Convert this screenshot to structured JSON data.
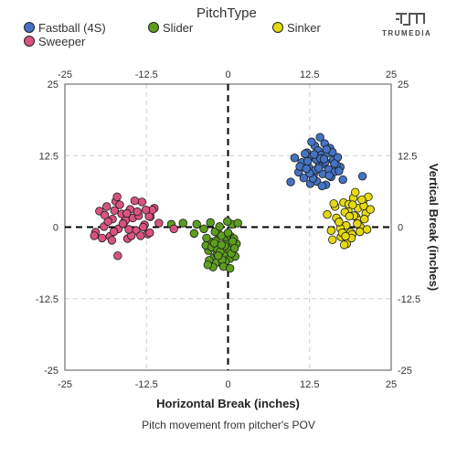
{
  "legend": {
    "title": "PitchType",
    "items": [
      {
        "label": "Fastball (4S)",
        "color": "#4472c4"
      },
      {
        "label": "Slider",
        "color": "#5c9e1e"
      },
      {
        "label": "Sinker",
        "color": "#e5d913"
      },
      {
        "label": "Sweeper",
        "color": "#d9537f"
      }
    ]
  },
  "logo": {
    "text": "TRUMEDIA",
    "icon": "trumedia-logo-icon"
  },
  "caption": "Pitch movement from pitcher's POV",
  "chart_data": {
    "type": "scatter",
    "xlabel": "Horizontal Break (inches)",
    "ylabel": "Vertical Break (inches)",
    "xlim": [
      -25,
      25
    ],
    "ylim": [
      -25,
      25
    ],
    "xticks": [
      "-25",
      "-12.5",
      "0",
      "12.5",
      "25"
    ],
    "yticks": [
      "25",
      "12.5",
      "0",
      "-12.5",
      "-25"
    ],
    "grid": true,
    "legend_position": "top",
    "series": [
      {
        "name": "Fastball (4S)",
        "color": "#4472c4",
        "x": [
          9.6,
          10.2,
          10.8,
          11.3,
          11.6,
          12.1,
          12.4,
          12.6,
          12.9,
          13.1,
          13.3,
          13.5,
          13.6,
          13.8,
          14.0,
          14.1,
          14.3,
          14.5,
          14.6,
          14.8,
          15.0,
          15.2,
          15.4,
          15.6,
          15.8,
          16.1,
          16.4,
          16.8,
          17.2,
          17.6,
          12.2,
          12.8,
          13.4,
          14.2,
          14.9,
          15.5,
          16.0,
          16.6,
          13.0,
          14.4,
          11.0,
          11.8,
          12.5,
          13.9,
          15.1,
          16.3,
          17.0,
          14.7,
          13.2,
          12.0,
          20.6
        ],
        "y": [
          7.9,
          12.1,
          9.6,
          11.3,
          8.6,
          13.0,
          10.4,
          7.6,
          12.4,
          9.1,
          14.2,
          11.8,
          8.0,
          13.4,
          10.7,
          15.7,
          12.6,
          9.3,
          11.0,
          14.6,
          7.4,
          12.9,
          10.1,
          13.8,
          8.8,
          11.7,
          9.7,
          12.2,
          10.5,
          8.3,
          11.5,
          14.9,
          10.0,
          12.0,
          11.4,
          9.0,
          13.1,
          10.9,
          8.5,
          7.2,
          10.6,
          12.8,
          9.4,
          10.3,
          13.6,
          11.1,
          9.8,
          11.9,
          12.7,
          10.2,
          8.9
        ]
      },
      {
        "name": "Slider",
        "color": "#5c9e1e",
        "x": [
          -1.5,
          -2.6,
          -3.0,
          -3.4,
          -2.2,
          -1.8,
          -1.1,
          -0.6,
          -0.2,
          0.4,
          0.8,
          1.3,
          -2.9,
          -2.0,
          -1.4,
          -0.8,
          -0.3,
          0.3,
          0.9,
          -3.3,
          -2.5,
          -1.7,
          -1.0,
          -0.4,
          0.2,
          0.7,
          1.1,
          -2.3,
          -1.3,
          -0.5,
          0.5,
          -1.9,
          -0.9,
          0.0,
          1.0,
          -2.7,
          -1.6,
          -0.7,
          0.6,
          -1.2,
          -6.9,
          -4.8,
          -3.7,
          -8.7,
          -5.2,
          1.5,
          0.3,
          -0.1,
          -1.5,
          -2.1,
          -3.1,
          -1.0
        ],
        "y": [
          -1.1,
          -2.6,
          -4.1,
          -3.2,
          -5.3,
          -6.2,
          -3.6,
          -4.9,
          -2.2,
          -1.6,
          -3.9,
          -2.9,
          -5.8,
          -0.8,
          -4.4,
          -6.6,
          -3.0,
          -5.5,
          -2.0,
          -1.9,
          -3.5,
          -4.7,
          -1.5,
          -6.0,
          -4.0,
          -2.5,
          -5.1,
          -7.0,
          0.1,
          -3.3,
          -4.6,
          -2.4,
          -5.7,
          -1.0,
          -3.7,
          0.8,
          -3.9,
          -6.9,
          0.5,
          -4.3,
          0.7,
          0.5,
          -0.3,
          0.5,
          -1.1,
          0.7,
          -7.2,
          1.0,
          -5.0,
          -2.8,
          -6.6,
          -3.1
        ]
      },
      {
        "name": "Sinker",
        "color": "#e5d913",
        "x": [
          15.2,
          15.8,
          16.4,
          16.9,
          17.3,
          17.7,
          18.1,
          18.4,
          18.8,
          19.2,
          19.6,
          19.9,
          20.3,
          20.7,
          21.1,
          21.5,
          16.0,
          16.6,
          17.2,
          17.9,
          18.5,
          19.0,
          19.5,
          20.1,
          20.8,
          21.3,
          17.0,
          18.2,
          19.3,
          20.5,
          21.8,
          18.9,
          19.8,
          20.9,
          16.2,
          17.5,
          18.6,
          20.2,
          19.1,
          17.8,
          18.0
        ],
        "y": [
          2.2,
          -0.6,
          3.6,
          1.1,
          -1.7,
          4.3,
          0.3,
          2.9,
          -0.9,
          5.1,
          1.8,
          3.3,
          0.0,
          4.6,
          2.4,
          5.3,
          -2.2,
          1.6,
          -0.2,
          2.6,
          4.0,
          -1.3,
          6.1,
          1.2,
          3.7,
          -0.4,
          0.9,
          -2.9,
          2.0,
          4.8,
          3.1,
          -1.9,
          0.6,
          1.4,
          4.1,
          -1.0,
          1.9,
          -0.8,
          3.9,
          -3.1,
          -1.6
        ]
      },
      {
        "name": "Sweeper",
        "color": "#d9537f",
        "x": [
          -20.3,
          -19.7,
          -19.0,
          -18.6,
          -18.1,
          -17.7,
          -17.2,
          -16.8,
          -16.3,
          -15.9,
          -15.4,
          -15.0,
          -14.6,
          -14.1,
          -13.7,
          -13.2,
          -12.8,
          -12.3,
          -11.9,
          -11.3,
          -10.6,
          -19.3,
          -18.4,
          -17.5,
          -16.6,
          -15.7,
          -14.8,
          -13.9,
          -13.0,
          -12.1,
          -18.9,
          -17.0,
          -15.2,
          -13.4,
          -11.6,
          -16.1,
          -14.3,
          -12.6,
          -17.8,
          -15.5,
          -16.9,
          -8.3,
          -12.0,
          -20.5,
          -17.4
        ],
        "y": [
          -0.9,
          2.8,
          0.1,
          3.6,
          -1.6,
          1.4,
          4.5,
          -0.3,
          2.3,
          0.9,
          -2.0,
          3.1,
          1.6,
          -0.6,
          2.0,
          4.4,
          0.4,
          -1.2,
          1.8,
          3.3,
          0.7,
          -1.9,
          1.0,
          -0.8,
          3.9,
          1.2,
          -1.5,
          2.7,
          0.0,
          1.9,
          2.1,
          5.3,
          -0.4,
          -1.5,
          3.0,
          0.6,
          4.6,
          3.0,
          -2.3,
          2.4,
          -5.0,
          -0.3,
          -1.0,
          -1.5,
          2.9
        ]
      }
    ]
  }
}
